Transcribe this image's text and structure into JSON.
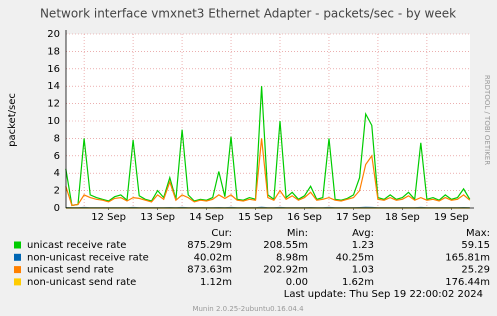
{
  "chart_data": {
    "type": "line",
    "title": "Network interface vmxnet3 Ethernet Adapter - packets/sec - by week",
    "y_label": "packet/sec",
    "side_text": "RRDTOOL / TOBI OETIKER",
    "xlim": [
      11.63,
      19.88
    ],
    "xticks": [
      {
        "value": 12.5,
        "label": "12 Sep"
      },
      {
        "value": 13.5,
        "label": "13 Sep"
      },
      {
        "value": 14.5,
        "label": "14 Sep"
      },
      {
        "value": 15.5,
        "label": "15 Sep"
      },
      {
        "value": 16.5,
        "label": "16 Sep"
      },
      {
        "value": 17.5,
        "label": "17 Sep"
      },
      {
        "value": 18.5,
        "label": "18 Sep"
      },
      {
        "value": 19.5,
        "label": "19 Sep"
      }
    ],
    "xgrid": [
      12,
      13,
      14,
      15,
      16,
      17,
      18,
      19
    ],
    "ylim": [
      0,
      20
    ],
    "yticks": [
      0,
      2,
      4,
      6,
      8,
      10,
      12,
      14,
      16,
      18,
      20
    ],
    "grid": true,
    "x": [
      11.625,
      11.75,
      11.875,
      12,
      12.125,
      12.25,
      12.375,
      12.5,
      12.625,
      12.75,
      12.875,
      13,
      13.125,
      13.25,
      13.375,
      13.5,
      13.625,
      13.75,
      13.875,
      14,
      14.125,
      14.25,
      14.375,
      14.5,
      14.625,
      14.75,
      14.875,
      15,
      15.125,
      15.25,
      15.375,
      15.5,
      15.625,
      15.75,
      15.875,
      16,
      16.125,
      16.25,
      16.375,
      16.5,
      16.625,
      16.75,
      16.875,
      17,
      17.125,
      17.25,
      17.375,
      17.5,
      17.625,
      17.75,
      17.875,
      18,
      18.125,
      18.25,
      18.375,
      18.5,
      18.625,
      18.75,
      18.875,
      19,
      19.125,
      19.25,
      19.375,
      19.5,
      19.625,
      19.75,
      19.875
    ],
    "stats_headers": [
      "Cur:",
      "Min:",
      "Avg:",
      "Max:"
    ],
    "series": [
      {
        "name": "unicast receive rate",
        "color": "#00cc00",
        "values": [
          4.5,
          0.3,
          0.4,
          8.0,
          1.5,
          1.2,
          1.0,
          0.8,
          1.3,
          1.5,
          0.9,
          7.8,
          1.4,
          1.0,
          0.8,
          2.0,
          1.2,
          3.5,
          1.0,
          9.0,
          1.5,
          0.8,
          1.0,
          0.9,
          1.2,
          4.2,
          1.3,
          8.2,
          1.0,
          0.9,
          1.2,
          1.0,
          14.0,
          1.5,
          1.0,
          10.0,
          1.2,
          1.8,
          1.0,
          1.4,
          2.5,
          1.0,
          1.2,
          8.0,
          1.0,
          0.9,
          1.1,
          1.5,
          3.5,
          10.8,
          9.5,
          1.2,
          1.0,
          1.5,
          1.0,
          1.2,
          1.8,
          1.0,
          7.5,
          1.0,
          1.2,
          0.9,
          1.5,
          1.0,
          1.2,
          2.2,
          1.0
        ],
        "stats": [
          "875.29m",
          "208.55m",
          "1.23",
          "59.15"
        ]
      },
      {
        "name": "non-unicast receive rate",
        "color": "#0066b3",
        "values": [
          0.05,
          0.04,
          0.04,
          0.06,
          0.04,
          0.04,
          0.04,
          0.04,
          0.04,
          0.04,
          0.04,
          0.06,
          0.04,
          0.04,
          0.04,
          0.04,
          0.04,
          0.05,
          0.04,
          0.06,
          0.04,
          0.04,
          0.04,
          0.04,
          0.04,
          0.05,
          0.04,
          0.06,
          0.04,
          0.04,
          0.04,
          0.04,
          0.08,
          0.04,
          0.04,
          0.06,
          0.04,
          0.04,
          0.04,
          0.04,
          0.05,
          0.04,
          0.04,
          0.06,
          0.04,
          0.04,
          0.04,
          0.04,
          0.05,
          0.07,
          0.06,
          0.04,
          0.04,
          0.04,
          0.04,
          0.04,
          0.04,
          0.04,
          0.06,
          0.04,
          0.04,
          0.04,
          0.04,
          0.04,
          0.04,
          0.05,
          0.04
        ],
        "stats": [
          "40.02m",
          "8.98m",
          "40.25m",
          "165.81m"
        ]
      },
      {
        "name": "unicast send rate",
        "color": "#ff8000",
        "values": [
          2.5,
          0.3,
          0.4,
          1.5,
          1.2,
          1.0,
          0.9,
          0.7,
          1.1,
          1.2,
          0.8,
          1.2,
          1.1,
          0.9,
          0.7,
          1.5,
          1.0,
          3.0,
          0.9,
          1.5,
          1.2,
          0.7,
          0.9,
          0.8,
          1.0,
          1.5,
          1.1,
          1.5,
          0.9,
          0.8,
          1.0,
          0.9,
          8.0,
          1.2,
          0.9,
          2.0,
          1.0,
          1.4,
          0.9,
          1.2,
          1.8,
          0.9,
          1.0,
          1.2,
          0.9,
          0.8,
          1.0,
          1.2,
          2.0,
          5.0,
          6.0,
          1.0,
          0.9,
          1.2,
          0.9,
          1.0,
          1.4,
          0.9,
          1.2,
          0.9,
          1.0,
          0.8,
          1.2,
          0.9,
          1.0,
          1.5,
          0.9
        ],
        "stats": [
          "873.63m",
          "202.92m",
          "1.03",
          "25.29"
        ]
      },
      {
        "name": "non-unicast send rate",
        "color": "#ffcc00",
        "values": [
          0.001,
          0.001,
          0.001,
          0.002,
          0.001,
          0.001,
          0.001,
          0.001,
          0.001,
          0.001,
          0.001,
          0.002,
          0.001,
          0.001,
          0.001,
          0.001,
          0.001,
          0.001,
          0.001,
          0.002,
          0.001,
          0.001,
          0.001,
          0.001,
          0.001,
          0.001,
          0.001,
          0.002,
          0.001,
          0.001,
          0.001,
          0.001,
          0.002,
          0.001,
          0.001,
          0.002,
          0.001,
          0.001,
          0.001,
          0.001,
          0.001,
          0.001,
          0.001,
          0.002,
          0.001,
          0.001,
          0.001,
          0.001,
          0.001,
          0.002,
          0.002,
          0.001,
          0.001,
          0.001,
          0.001,
          0.001,
          0.001,
          0.001,
          0.002,
          0.001,
          0.001,
          0.001,
          0.001,
          0.001,
          0.001,
          0.001,
          0.001
        ],
        "stats": [
          "1.12m",
          "0.00",
          "1.62m",
          "176.44m"
        ]
      }
    ],
    "last_update": "Last update:  Thu Sep 19 22:00:02 2024",
    "footer": "Munin 2.0.25-2ubuntu0.16.04.4"
  }
}
